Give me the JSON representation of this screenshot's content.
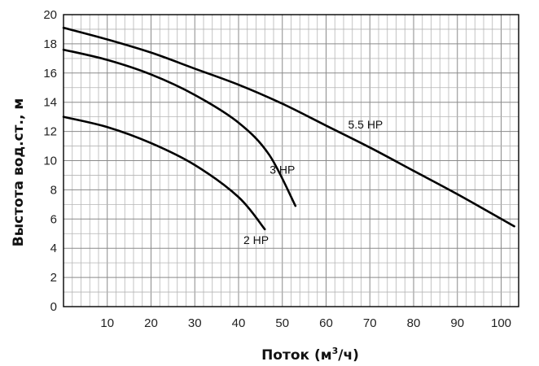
{
  "chart_data": {
    "type": "line",
    "xlabel_main": "Поток (м",
    "xlabel_sup": "3",
    "xlabel_end": "/ч)",
    "ylabel": "Выстота вод.ст., м",
    "xlim": [
      0,
      104
    ],
    "ylim": [
      0,
      20
    ],
    "x_ticks": [
      "10",
      "20",
      "30",
      "40",
      "50",
      "60",
      "70",
      "80",
      "90",
      "100"
    ],
    "y_ticks": [
      "0",
      "2",
      "4",
      "6",
      "8",
      "10",
      "12",
      "14",
      "16",
      "18",
      "20"
    ],
    "grid": true,
    "series": [
      {
        "name": "5.5 HP",
        "points": [
          [
            0,
            19.1
          ],
          [
            10,
            18.3
          ],
          [
            20,
            17.4
          ],
          [
            30,
            16.3
          ],
          [
            40,
            15.2
          ],
          [
            50,
            13.9
          ],
          [
            60,
            12.4
          ],
          [
            70,
            10.9
          ],
          [
            80,
            9.3
          ],
          [
            90,
            7.7
          ],
          [
            103,
            5.5
          ]
        ]
      },
      {
        "name": "3 HP",
        "points": [
          [
            0,
            17.6
          ],
          [
            10,
            16.9
          ],
          [
            20,
            15.9
          ],
          [
            30,
            14.5
          ],
          [
            40,
            12.6
          ],
          [
            47,
            10.4
          ],
          [
            53,
            6.9
          ]
        ]
      },
      {
        "name": "2 HP",
        "points": [
          [
            0,
            13.0
          ],
          [
            10,
            12.3
          ],
          [
            20,
            11.2
          ],
          [
            30,
            9.7
          ],
          [
            40,
            7.5
          ],
          [
            46,
            5.3
          ]
        ]
      }
    ]
  }
}
